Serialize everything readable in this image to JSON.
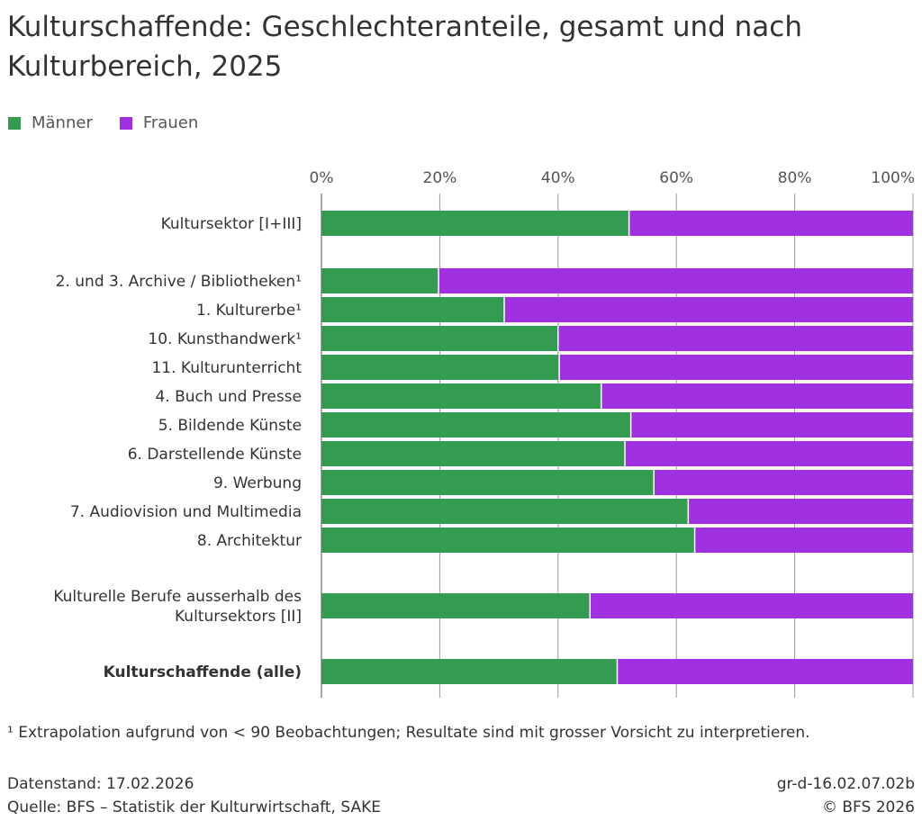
{
  "title": "Kulturschaffende: Geschlechteranteile, gesamt und nach Kulturbereich, 2025",
  "legend": [
    {
      "name": "Männer",
      "color": "#339c50"
    },
    {
      "name": "Frauen",
      "color": "#a030e0"
    }
  ],
  "chart_data": {
    "type": "bar",
    "orientation": "horizontal",
    "stacked": true,
    "xlim": [
      0,
      100
    ],
    "x_ticks": [
      "0%",
      "20%",
      "40%",
      "60%",
      "80%",
      "100%"
    ],
    "x_tick_values": [
      0,
      20,
      40,
      60,
      80,
      100
    ],
    "grid": true,
    "legend_position": "top-left",
    "categories": [
      "Kultursektor [I+III]",
      "2. und 3. Archive / Bibliotheken¹",
      "1. Kulturerbe¹",
      "10. Kunsthandwerk¹",
      "11. Kulturunterricht",
      "4. Buch und Presse",
      "5. Bildende Künste",
      "6. Darstellende Künste",
      "9. Werbung",
      "7. Audiovision und Multimedia",
      "8. Architektur",
      "Kulturelle Berufe ausserhalb des Kultursektors [II]",
      "Kulturschaffende (alle)"
    ],
    "category_lines": [
      [
        "Kultursektor [I+III]"
      ],
      [
        "2. und 3. Archive / Bibliotheken¹"
      ],
      [
        "1. Kulturerbe¹"
      ],
      [
        "10. Kunsthandwerk¹"
      ],
      [
        "11. Kulturunterricht"
      ],
      [
        "4. Buch und Presse"
      ],
      [
        "5. Bildende Künste"
      ],
      [
        "6. Darstellende Künste"
      ],
      [
        "9. Werbung"
      ],
      [
        "7. Audiovision und Multimedia"
      ],
      [
        "8. Architektur"
      ],
      [
        "Kulturelle Berufe ausserhalb des",
        "Kultursektors [II]"
      ],
      [
        "Kulturschaffende (alle)"
      ]
    ],
    "bold_categories": [
      "Kulturschaffende (alle)"
    ],
    "series": [
      {
        "name": "Männer",
        "color": "#339c50",
        "values": [
          52.0,
          19.8,
          30.9,
          40.0,
          40.2,
          47.3,
          52.3,
          51.3,
          56.2,
          62.0,
          63.1,
          45.4,
          50.0
        ]
      },
      {
        "name": "Frauen",
        "color": "#a030e0",
        "values": [
          48.0,
          80.2,
          69.1,
          60.0,
          59.8,
          52.7,
          47.7,
          48.7,
          43.8,
          38.0,
          36.9,
          54.6,
          50.0
        ]
      }
    ]
  },
  "footnote": "¹ Extrapolation aufgrund von < 90 Beobachtungen; Resultate sind mit grosser Vorsicht zu interpretieren.",
  "footer": {
    "datenstand": "Datenstand: 17.02.2026",
    "quelle": "Quelle: BFS – Statistik der Kulturwirtschaft, SAKE",
    "code": "gr-d-16.02.07.02b",
    "copyright": "© BFS 2026"
  }
}
